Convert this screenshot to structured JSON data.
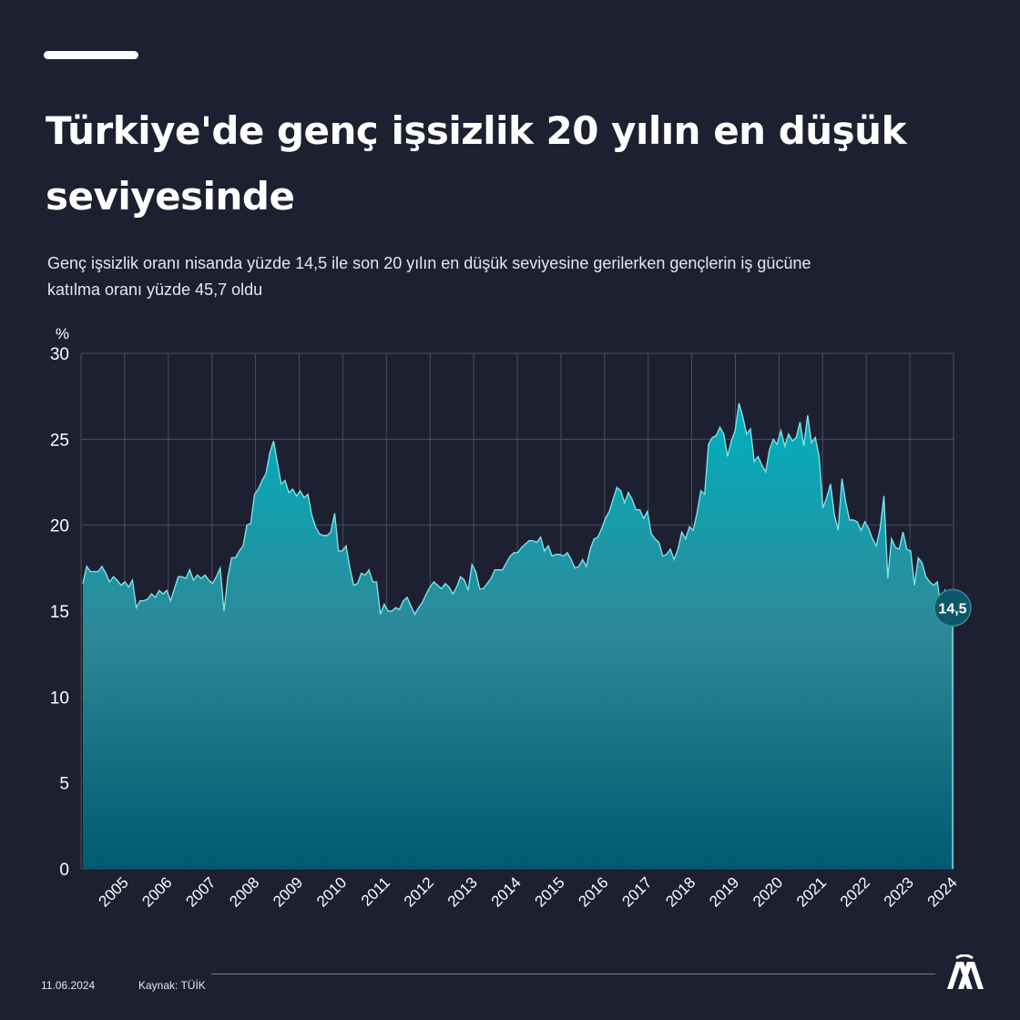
{
  "title": "Türkiye'de genç işsizlik 20 yılın en düşük seviyesinde",
  "subtitle": "Genç işsizlik oranı nisanda yüzde 14,5 ile son 20 yılın en düşük seviyesine gerilerken gençlerin iş gücüne katılma oranı yüzde 45,7 oldu",
  "footer": {
    "date": "11.06.2024",
    "source": "Kaynak: TÜİK"
  },
  "logo": {
    "icon": "aa-logo-icon"
  },
  "colors": {
    "background": "#1c2030",
    "area_top": "#00b0c0",
    "area_bottom": "#005a70",
    "line": "#7fe0e8"
  },
  "chart_data": {
    "type": "area",
    "yunit": "%",
    "ylim": [
      0,
      30
    ],
    "yticks": [
      "0",
      "5",
      "10",
      "15",
      "20",
      "25",
      "30"
    ],
    "xticks": [
      "2005",
      "2006",
      "2007",
      "2008",
      "2009",
      "2010",
      "2011",
      "2012",
      "2013",
      "2014",
      "2015",
      "2016",
      "2017",
      "2018",
      "2019",
      "2020",
      "2021",
      "2022",
      "2023",
      "2024"
    ],
    "grid": true,
    "last_value_label": "14,5",
    "series": [
      {
        "values": [
          16.6,
          17.6,
          17.3,
          17.3,
          17.3,
          17.6,
          17.2,
          16.7,
          17.0,
          16.8,
          16.5,
          16.7,
          16.4,
          16.8,
          15.2,
          15.6,
          15.6,
          15.7,
          16.0,
          15.8,
          16.2,
          16.0,
          16.2,
          15.6,
          16.3,
          17.0,
          17.0,
          16.9,
          17.4,
          16.8,
          17.1,
          16.9,
          17.1,
          16.8,
          16.6,
          17.0,
          17.5,
          15.0,
          17.0,
          18.1,
          18.1,
          18.5,
          18.8,
          20.0,
          20.1,
          21.8,
          22.1,
          22.6,
          23.0,
          24.2,
          24.9,
          23.6,
          22.4,
          22.6,
          21.9,
          22.1,
          21.7,
          22.0,
          21.6,
          21.8,
          20.6,
          19.9,
          19.5,
          19.4,
          19.4,
          19.6,
          20.7,
          18.5,
          18.5,
          18.8,
          17.5,
          16.5,
          16.6,
          17.2,
          17.1,
          17.4,
          16.7,
          16.7,
          14.8,
          15.4,
          15.0,
          15.0,
          15.2,
          15.1,
          15.6,
          15.8,
          15.3,
          14.8,
          15.2,
          15.5,
          16.0,
          16.4,
          16.7,
          16.5,
          16.3,
          16.6,
          16.4,
          16.0,
          16.4,
          17.0,
          16.8,
          16.2,
          17.7,
          17.3,
          16.3,
          16.3,
          16.6,
          16.9,
          17.4,
          17.4,
          17.4,
          17.8,
          18.2,
          18.4,
          18.4,
          18.7,
          18.9,
          19.1,
          19.1,
          19.0,
          19.3,
          18.5,
          18.8,
          18.2,
          18.3,
          18.3,
          18.2,
          18.4,
          18.0,
          17.5,
          17.6,
          18.0,
          17.6,
          18.6,
          19.2,
          19.3,
          19.8,
          20.4,
          20.8,
          21.5,
          22.2,
          22.0,
          21.3,
          21.9,
          21.5,
          20.9,
          20.9,
          20.4,
          20.8,
          19.5,
          19.2,
          19.0,
          18.2,
          18.3,
          18.6,
          18.0,
          18.6,
          19.6,
          19.2,
          19.9,
          19.7,
          20.7,
          22.0,
          21.8,
          24.7,
          25.1,
          25.2,
          25.7,
          25.3,
          24.0,
          24.9,
          25.5,
          27.1,
          26.3,
          25.3,
          25.6,
          23.7,
          24.0,
          23.5,
          23.1,
          24.4,
          25.0,
          24.7,
          25.5,
          24.6,
          25.3,
          24.9,
          25.1,
          26.0,
          24.6,
          26.4,
          24.8,
          25.1,
          24.0,
          21.0,
          21.6,
          22.4,
          20.6,
          19.7,
          22.7,
          21.3,
          20.3,
          20.3,
          20.2,
          19.7,
          20.2,
          19.8,
          19.2,
          18.8,
          19.8,
          21.7,
          16.9,
          19.2,
          18.7,
          18.6,
          19.6,
          18.6,
          18.5,
          16.5,
          18.1,
          17.8,
          17.0,
          16.7,
          16.5,
          16.7,
          15.0,
          16.2,
          15.6,
          14.5
        ]
      }
    ]
  }
}
